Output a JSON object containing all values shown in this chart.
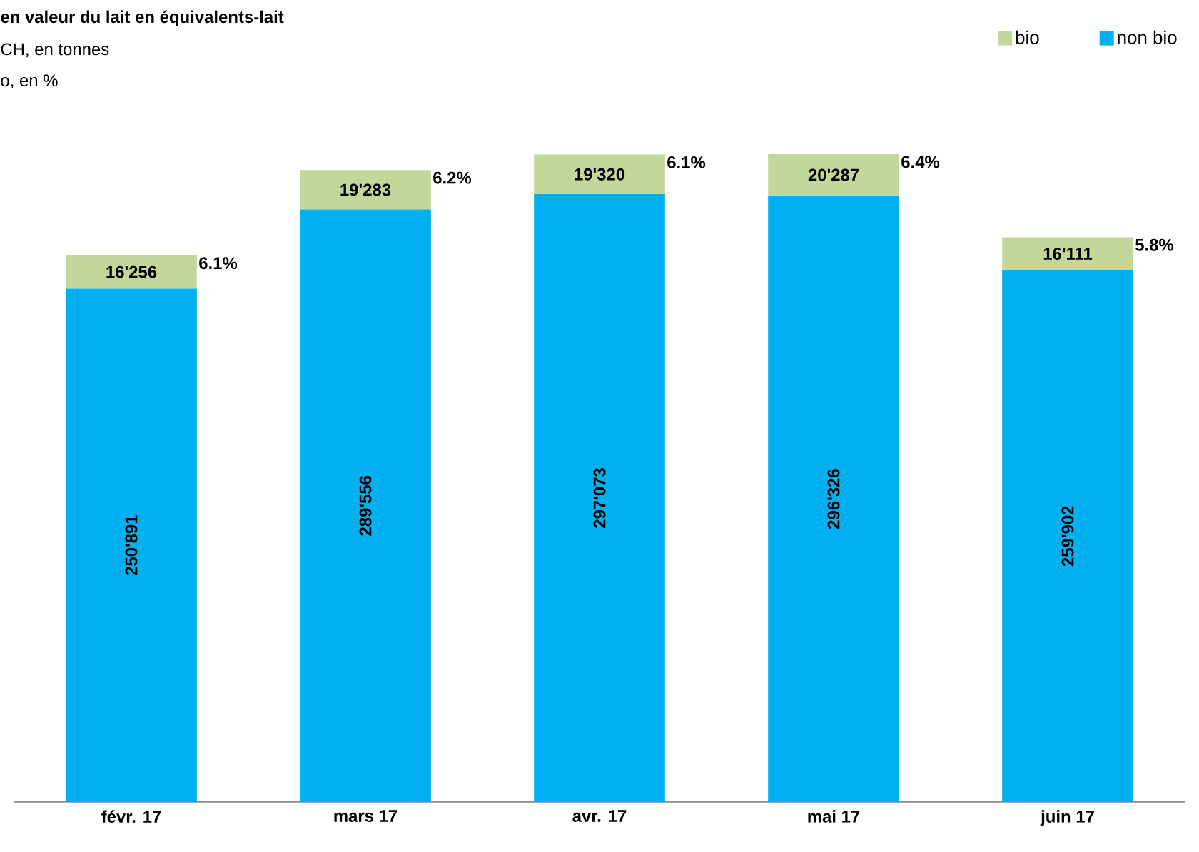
{
  "chart_data": {
    "type": "bar",
    "stacked": true,
    "title": "en valeur du lait en équivalents-lait",
    "subtitle": "CH, en tonnes",
    "categories": [
      "févr. 17",
      "mars 17",
      "avr. 17",
      "mai 17",
      "juin 17"
    ],
    "series": [
      {
        "name": "non bio",
        "color": "#00b0f0",
        "values": [
          250891,
          289556,
          297073,
          296326,
          259902
        ],
        "value_labels": [
          "250'891",
          "289'556",
          "297'073",
          "296'326",
          "259'902"
        ]
      },
      {
        "name": "bio",
        "color": "#c4d79b",
        "values": [
          16256,
          19283,
          19320,
          20287,
          16111
        ],
        "value_labels": [
          "16'256",
          "19'283",
          "19'320",
          "20'287",
          "16'111"
        ]
      }
    ],
    "tick_labels": "x",
    "legend": "top right",
    "annotations": [
      "o, en %",
      "6.1%",
      "6.2%",
      "6.1%",
      "6.4%",
      "5.8%"
    ]
  }
}
